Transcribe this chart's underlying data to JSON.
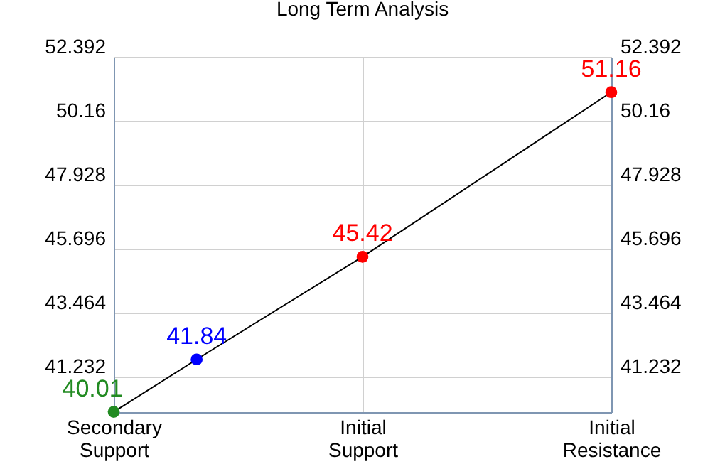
{
  "chart_data": {
    "type": "line",
    "title": "Long Term Analysis",
    "categories": [
      "Secondary Support",
      null,
      null,
      "Initial Support",
      null,
      null,
      "Initial Resistance"
    ],
    "series": [
      {
        "color": "#000000",
        "values": [
          40.01,
          41.84,
          null,
          45.42,
          null,
          null,
          51.16
        ],
        "colors": [
          "#228b22",
          "#0000ff",
          null,
          "#ff0000",
          null,
          null,
          "#ff0000"
        ]
      }
    ],
    "ylim": [
      40,
      52.392
    ],
    "yticks": [
      41.232,
      43.464,
      45.696,
      47.928,
      50.16,
      52.392
    ],
    "y2lim": [
      40,
      52.392
    ],
    "y2ticks": [
      41.232,
      43.464,
      45.696,
      47.928,
      50.16,
      52.392
    ],
    "grid": true,
    "marker": "circle",
    "data_labels": true
  }
}
